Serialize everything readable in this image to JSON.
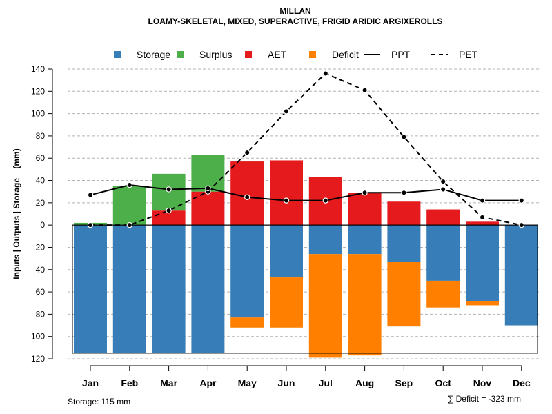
{
  "chart_data": {
    "type": "bar",
    "title": "MILLAN",
    "subtitle": "LOAMY-SKELETAL, MIXED, SUPERACTIVE, FRIGID ARIDIC ARGIXEROLLS",
    "ylabel": "Inputs | Outputs | Storage    (mm)",
    "ylim": [
      -120,
      140
    ],
    "ytick_values": [
      140,
      120,
      100,
      80,
      60,
      40,
      20,
      0,
      -20,
      -40,
      -60,
      -80,
      -100,
      -120
    ],
    "ytick_labels": [
      "140",
      "120",
      "100",
      "80",
      "60",
      "40",
      "20",
      "0",
      "20",
      "40",
      "60",
      "80",
      "100",
      "120"
    ],
    "categories": [
      "Jan",
      "Feb",
      "Mar",
      "Apr",
      "May",
      "Jun",
      "Jul",
      "Aug",
      "Sep",
      "Oct",
      "Nov",
      "Dec"
    ],
    "legend": [
      {
        "name": "Storage",
        "color": "#377EB8",
        "kind": "box"
      },
      {
        "name": "Surplus",
        "color": "#4DAF4A",
        "kind": "box"
      },
      {
        "name": "AET",
        "color": "#E41A1C",
        "kind": "box"
      },
      {
        "name": "Deficit",
        "color": "#FF7F00",
        "kind": "box"
      },
      {
        "name": "PPT",
        "color": "#000000",
        "kind": "line"
      },
      {
        "name": "PET",
        "color": "#000000",
        "kind": "dash"
      }
    ],
    "series": [
      {
        "name": "Storage",
        "color": "#377EB8",
        "values": [
          115,
          115,
          115,
          115,
          83,
          47,
          26,
          26,
          33,
          50,
          68,
          90
        ]
      },
      {
        "name": "Surplus",
        "color": "#4DAF4A",
        "values": [
          2,
          35,
          33,
          33,
          0,
          0,
          0,
          0,
          0,
          0,
          0,
          0
        ]
      },
      {
        "name": "AET",
        "color": "#E41A1C",
        "values": [
          0,
          0,
          13,
          30,
          57,
          58,
          43,
          29,
          21,
          14,
          3,
          0
        ]
      },
      {
        "name": "Deficit",
        "color": "#FF7F00",
        "values": [
          0,
          0,
          0,
          0,
          9,
          45,
          93,
          91,
          58,
          24,
          4,
          0
        ]
      },
      {
        "name": "PPT",
        "color": "#000000",
        "values": [
          27,
          36,
          32,
          33,
          25,
          22,
          22,
          29,
          29,
          32,
          22,
          22
        ]
      },
      {
        "name": "PET",
        "color": "#000000",
        "values": [
          0,
          0,
          13,
          30,
          65,
          102,
          136,
          121,
          79,
          39,
          7,
          0
        ]
      }
    ],
    "storage_capacity": 115,
    "annotations": {
      "storage": "Storage: 115 mm",
      "deficit": "∑ Deficit = -323 mm"
    },
    "grid": true
  }
}
